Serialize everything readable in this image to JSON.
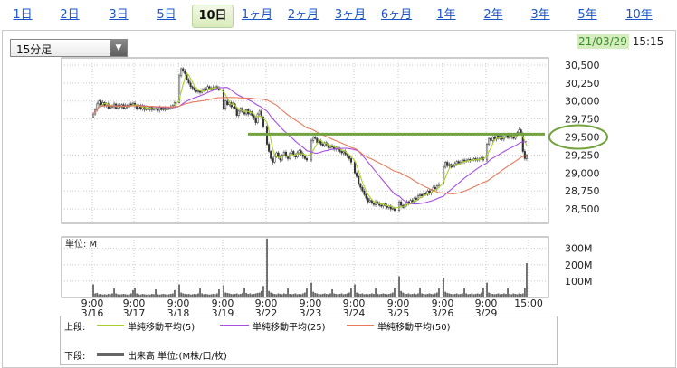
{
  "period_tabs": [
    {
      "label": "1日",
      "active": false
    },
    {
      "label": "2日",
      "active": false
    },
    {
      "label": "3日",
      "active": false
    },
    {
      "label": "5日",
      "active": false
    },
    {
      "label": "10日",
      "active": true
    },
    {
      "label": "1ヶ月",
      "active": false
    },
    {
      "label": "2ヶ月",
      "active": false
    },
    {
      "label": "3ヶ月",
      "active": false
    },
    {
      "label": "6ヶ月",
      "active": false
    },
    {
      "label": "1年",
      "active": false
    },
    {
      "label": "2年",
      "active": false
    },
    {
      "label": "3年",
      "active": false
    },
    {
      "label": "5年",
      "active": false
    },
    {
      "label": "10年",
      "active": false
    }
  ],
  "interval_select": {
    "value": "15分足",
    "icon": "chevron-down-icon"
  },
  "timestamp": {
    "date": "21/03/29",
    "time": "15:15",
    "highlight_color": "#3c8d2b"
  },
  "legend": {
    "upper_label": "上段:",
    "lower_label": "下段:",
    "ma": [
      {
        "label": "単純移動平均(5)",
        "color": "#a9cf2a"
      },
      {
        "label": "単純移動平均(25)",
        "color": "#a64fe0"
      },
      {
        "label": "単純移動平均(50)",
        "color": "#e8795a"
      }
    ],
    "volume": {
      "label": "出来高 単位:(M株/口/枚)",
      "color": "#666666"
    }
  },
  "chart_data": [
    {
      "type": "candlestick",
      "title": "",
      "ylim": [
        28300,
        30600
      ],
      "y_ticks": [
        28500,
        28750,
        29000,
        29250,
        29500,
        29750,
        30000,
        30250,
        30500
      ],
      "y_tick_labels": [
        "28,500",
        "28,750",
        "29,000",
        "29,250",
        "29,500",
        "29,750",
        "30,000",
        "30,250",
        "30,500"
      ],
      "x_ticks": [
        {
          "time": "9:00",
          "date": "3/16"
        },
        {
          "time": "9:00",
          "date": "3/17"
        },
        {
          "time": "9:00",
          "date": "3/18"
        },
        {
          "time": "9:00",
          "date": "3/19"
        },
        {
          "time": "9:00",
          "date": "3/22"
        },
        {
          "time": "9:00",
          "date": "3/23"
        },
        {
          "time": "9:00",
          "date": "3/24"
        },
        {
          "time": "9:00",
          "date": "3/25"
        },
        {
          "time": "9:00",
          "date": "3/26"
        },
        {
          "time": "9:00",
          "date": "3/29"
        },
        {
          "time": "15:00",
          "date": ""
        }
      ],
      "close_path": [
        {
          "date": "3/16",
          "values": [
            29820,
            29880,
            29960,
            30000,
            29950,
            29980,
            29940,
            29960,
            29900,
            29930,
            29920,
            29960,
            29900,
            29940,
            29920,
            29950,
            29900,
            29940,
            29920,
            29960,
            29950,
            29970
          ]
        },
        {
          "date": "3/17",
          "values": [
            29930,
            29900,
            29940,
            29890,
            29930,
            29880,
            29910,
            29880,
            29910,
            29880,
            29900,
            29890,
            29870,
            29910,
            29880,
            29900,
            29880,
            29890,
            29900,
            29920,
            29940,
            29980
          ]
        },
        {
          "date": "3/18",
          "values": [
            30350,
            30450,
            30420,
            30380,
            30300,
            30250,
            30200,
            30180,
            30150,
            30130,
            30140,
            30120,
            30150,
            30170,
            30160,
            30200,
            30180,
            30170,
            30190,
            30200,
            30180,
            30160
          ]
        },
        {
          "date": "3/19",
          "values": [
            29900,
            30000,
            29950,
            29980,
            29920,
            29960,
            29900,
            29800,
            29860,
            29900,
            29850,
            29820,
            29880,
            29820,
            29850,
            29800,
            29760,
            29700,
            29820,
            29860,
            29780,
            29650
          ]
        },
        {
          "date": "3/22",
          "values": [
            29400,
            29300,
            29200,
            29150,
            29230,
            29280,
            29220,
            29180,
            29250,
            29290,
            29230,
            29200,
            29270,
            29300,
            29250,
            29220,
            29280,
            29310,
            29270,
            29230,
            29200,
            29180
          ]
        },
        {
          "date": "3/23",
          "values": [
            29450,
            29500,
            29480,
            29420,
            29450,
            29400,
            29380,
            29420,
            29390,
            29350,
            29380,
            29360,
            29330,
            29360,
            29330,
            29300,
            29280,
            29300,
            29260,
            29230,
            29200,
            29150
          ]
        },
        {
          "date": "3/24",
          "values": [
            29000,
            28950,
            28850,
            28800,
            28750,
            28700,
            28650,
            28600,
            28620,
            28580,
            28560,
            28600,
            28580,
            28550,
            28540,
            28570,
            28550,
            28520,
            28540,
            28500,
            28510,
            28480
          ]
        },
        {
          "date": "3/25",
          "values": [
            28600,
            28550,
            28520,
            28560,
            28600,
            28580,
            28620,
            28600,
            28650,
            28630,
            28680,
            28700,
            28680,
            28720,
            28700,
            28750,
            28720,
            28760,
            28800,
            28780,
            28820,
            28850
          ]
        },
        {
          "date": "3/26",
          "values": [
            29080,
            29150,
            29100,
            29120,
            29080,
            29100,
            29130,
            29160,
            29140,
            29150,
            29180,
            29160,
            29170,
            29190,
            29170,
            29180,
            29200,
            29180,
            29190,
            29200,
            29210,
            29180
          ]
        },
        {
          "date": "3/29",
          "values": [
            29400,
            29480,
            29450,
            29500,
            29470,
            29520,
            29480,
            29510,
            29470,
            29500,
            29530,
            29490,
            29520,
            29500,
            29480,
            29520,
            29560,
            29600,
            29550,
            29300,
            29200,
            29250
          ]
        }
      ],
      "annotation": {
        "type": "horizontal-line",
        "value": 29540,
        "color": "#72a33e",
        "circled_label": "29,500"
      }
    },
    {
      "type": "bar",
      "title": "単位: M",
      "ylim": [
        0,
        370
      ],
      "y_ticks": [
        100,
        200,
        300
      ],
      "y_tick_labels": [
        "100M",
        "200M",
        "300M"
      ],
      "volume_by_day": [
        {
          "date": "3/16",
          "values": [
            80,
            25,
            28,
            20,
            22,
            18,
            20,
            18,
            22,
            20,
            25,
            55,
            25,
            20,
            18,
            20,
            22,
            20,
            18,
            20,
            25,
            45
          ]
        },
        {
          "date": "3/17",
          "values": [
            60,
            25,
            20,
            18,
            22,
            20,
            18,
            20,
            18,
            22,
            20,
            50,
            20,
            18,
            20,
            22,
            20,
            18,
            20,
            22,
            25,
            45
          ]
        },
        {
          "date": "3/18",
          "values": [
            80,
            30,
            25,
            22,
            20,
            22,
            18,
            20,
            22,
            20,
            25,
            55,
            25,
            20,
            22,
            20,
            18,
            20,
            22,
            20,
            25,
            50
          ]
        },
        {
          "date": "3/19",
          "values": [
            75,
            30,
            28,
            25,
            22,
            20,
            22,
            25,
            20,
            22,
            28,
            60,
            28,
            22,
            25,
            20,
            22,
            25,
            28,
            30,
            40,
            70
          ]
        },
        {
          "date": "3/22",
          "values": [
            360,
            40,
            30,
            25,
            22,
            20,
            25,
            22,
            20,
            25,
            22,
            55,
            22,
            20,
            22,
            25,
            20,
            22,
            20,
            25,
            30,
            55
          ]
        },
        {
          "date": "3/23",
          "values": [
            90,
            35,
            28,
            25,
            22,
            20,
            22,
            25,
            22,
            20,
            25,
            50,
            25,
            22,
            20,
            22,
            25,
            20,
            22,
            25,
            30,
            55
          ]
        },
        {
          "date": "3/24",
          "values": [
            80,
            30,
            25,
            22,
            25,
            20,
            22,
            20,
            22,
            25,
            22,
            55,
            22,
            20,
            22,
            25,
            22,
            20,
            22,
            25,
            30,
            60
          ]
        },
        {
          "date": "3/25",
          "values": [
            130,
            40,
            30,
            25,
            22,
            25,
            20,
            22,
            25,
            20,
            25,
            60,
            25,
            22,
            20,
            22,
            25,
            22,
            20,
            25,
            30,
            55
          ]
        },
        {
          "date": "3/26",
          "values": [
            120,
            35,
            28,
            25,
            22,
            20,
            22,
            25,
            20,
            22,
            25,
            55,
            25,
            20,
            22,
            25,
            20,
            22,
            25,
            22,
            30,
            60
          ]
        },
        {
          "date": "3/29",
          "values": [
            90,
            30,
            25,
            22,
            20,
            22,
            25,
            20,
            22,
            25,
            22,
            55,
            22,
            20,
            25,
            22,
            20,
            25,
            22,
            25,
            60,
            210
          ]
        }
      ]
    }
  ]
}
